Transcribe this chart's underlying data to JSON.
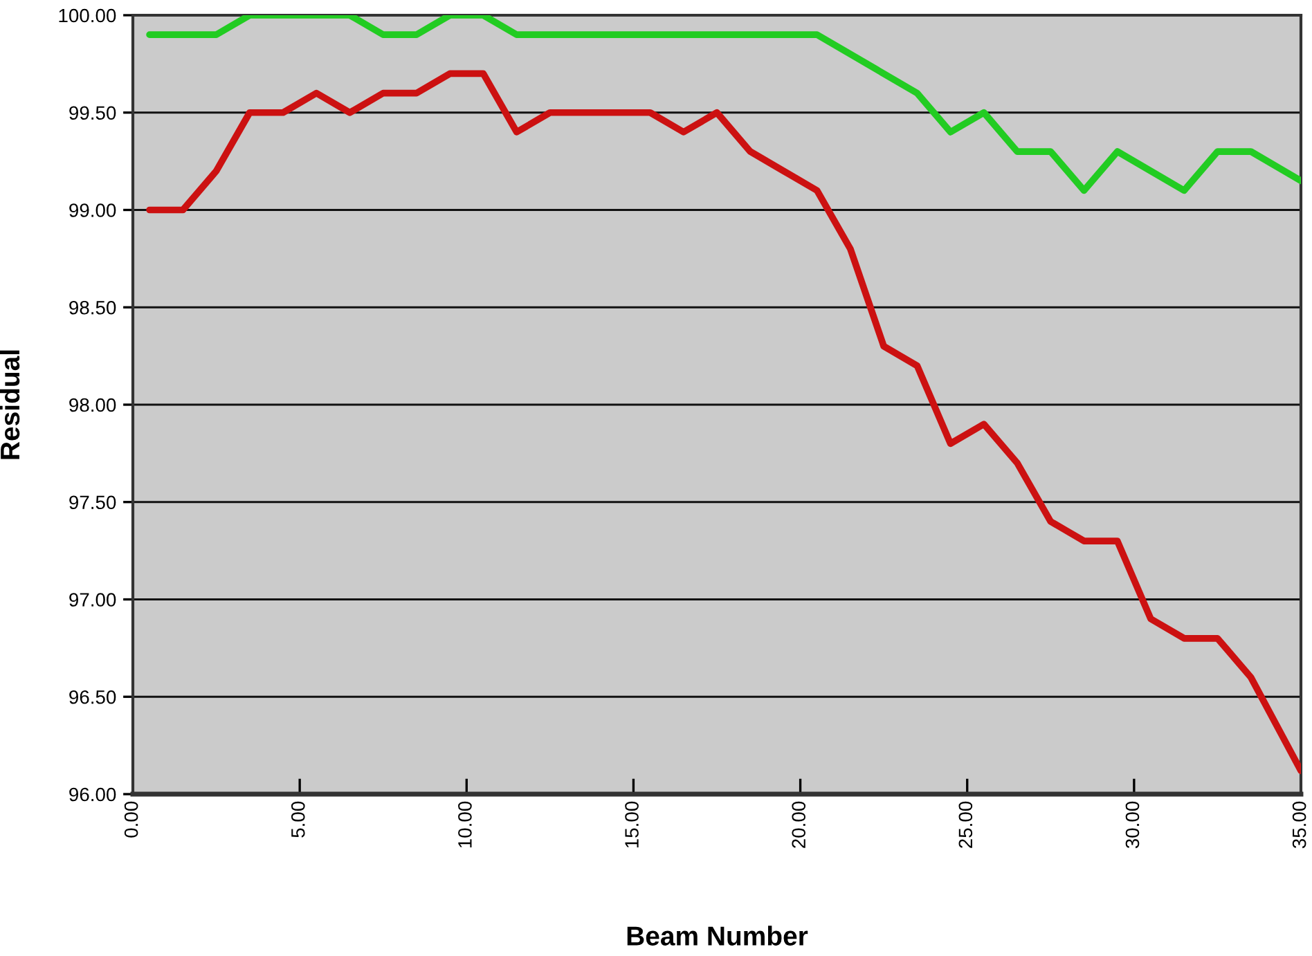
{
  "chart_data": {
    "type": "line",
    "xlabel": "Beam Number",
    "ylabel": "Residual",
    "xlim": [
      0,
      35
    ],
    "xticks": [
      {
        "value": 0,
        "label": "0.00"
      },
      {
        "value": 5,
        "label": "5.00"
      },
      {
        "value": 10,
        "label": "10.00"
      },
      {
        "value": 15,
        "label": "15.00"
      },
      {
        "value": 20,
        "label": "20.00"
      },
      {
        "value": 25,
        "label": "25.00"
      },
      {
        "value": 30,
        "label": "30.00"
      },
      {
        "value": 35,
        "label": "35.00"
      }
    ],
    "ylim": [
      96,
      100
    ],
    "yticks": [
      {
        "value": 96,
        "label": "96.00"
      },
      {
        "value": 96.5,
        "label": "96.50"
      },
      {
        "value": 97,
        "label": "97.00"
      },
      {
        "value": 97.5,
        "label": "97.50"
      },
      {
        "value": 98,
        "label": "98.00"
      },
      {
        "value": 98.5,
        "label": "98.50"
      },
      {
        "value": 99,
        "label": "99.00"
      },
      {
        "value": 99.5,
        "label": "99.50"
      },
      {
        "value": 100,
        "label": "100.00"
      }
    ],
    "grid": "y",
    "marker": "none",
    "line_style": "solid",
    "series": [
      {
        "color": "#22cc22",
        "x": [
          0.5,
          1.5,
          2.5,
          3.5,
          4.5,
          5.5,
          6.5,
          7.5,
          8.5,
          9.5,
          10.5,
          11.5,
          12.5,
          13.5,
          14.5,
          15.5,
          16.5,
          17.5,
          18.5,
          19.5,
          20.5,
          23.5,
          24.5,
          25.5,
          26.5,
          27.5,
          28.5,
          29.5,
          31.5,
          32.5,
          33.5,
          35
        ],
        "values": [
          99.9,
          99.9,
          99.9,
          100,
          100,
          100,
          100,
          99.9,
          99.9,
          100,
          100,
          99.9,
          99.9,
          99.9,
          99.9,
          99.9,
          99.9,
          99.9,
          99.9,
          99.9,
          99.9,
          99.6,
          99.4,
          99.5,
          99.3,
          99.3,
          99.1,
          99.3,
          99.1,
          99.3,
          99.3,
          99.15
        ]
      },
      {
        "color": "#cc1111",
        "x": [
          0.5,
          1.5,
          2.5,
          3.5,
          4.5,
          5.5,
          6.5,
          7.5,
          8.5,
          9.5,
          10.5,
          11.5,
          12.5,
          13.5,
          14.5,
          15.5,
          16.5,
          17.5,
          18.5,
          19.5,
          20.5,
          21.5,
          22.5,
          23.5,
          24.5,
          25.5,
          26.5,
          27.5,
          28.5,
          29.5,
          30.5,
          31.5,
          32.5,
          33.5,
          35
        ],
        "values": [
          99.0,
          99.0,
          99.2,
          99.5,
          99.5,
          99.6,
          99.5,
          99.6,
          99.6,
          99.7,
          99.7,
          99.4,
          99.5,
          99.5,
          99.5,
          99.5,
          99.4,
          99.5,
          99.3,
          99.2,
          99.1,
          98.8,
          98.3,
          98.2,
          97.8,
          97.9,
          97.7,
          97.4,
          97.3,
          97.3,
          96.9,
          96.8,
          96.8,
          96.6,
          96.12
        ]
      }
    ]
  }
}
